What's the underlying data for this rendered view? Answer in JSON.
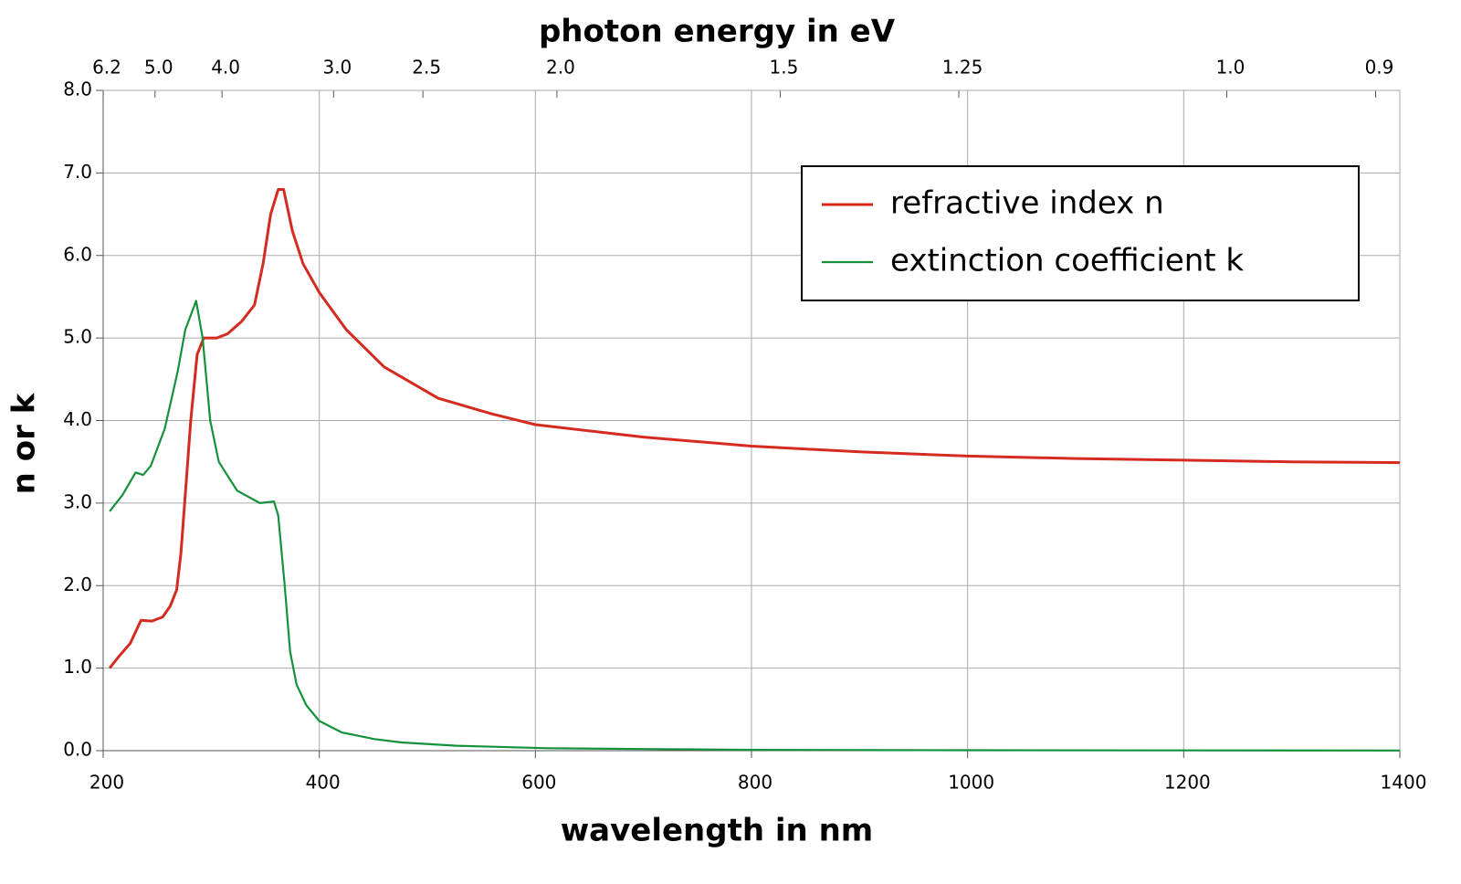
{
  "chart_data": {
    "type": "line",
    "xlabel": "wavelength in nm",
    "ylabel": "n or k",
    "x2label": "photon energy in eV",
    "xlim": [
      200,
      1400
    ],
    "xticks": [
      200,
      400,
      600,
      800,
      1000,
      1200,
      1400
    ],
    "ylim": [
      0,
      8
    ],
    "yticks": [
      {
        "value": 0,
        "label": "0.0"
      },
      {
        "value": 1,
        "label": "1.0"
      },
      {
        "value": 2,
        "label": "2.0"
      },
      {
        "value": 3,
        "label": "3.0"
      },
      {
        "value": 4,
        "label": "4.0"
      },
      {
        "value": 5,
        "label": "5.0"
      },
      {
        "value": 6,
        "label": "6.0"
      },
      {
        "value": 7,
        "label": "7.0"
      },
      {
        "value": 8,
        "label": "8.0"
      }
    ],
    "x2ticks": [
      6.2,
      {
        "value": 5,
        "label": "5.0"
      },
      {
        "value": 4,
        "label": "4.0"
      },
      {
        "value": 3,
        "label": "3.0"
      },
      2.5,
      {
        "value": 2,
        "label": "2.0"
      },
      1.5,
      1.25,
      {
        "value": 1,
        "label": "1.0"
      },
      0.9
    ],
    "grid": true,
    "legend": "upper right",
    "series": [
      {
        "name": "refractive index n",
        "color": "#d42a20",
        "x": [
          206,
          215,
          225,
          235,
          245,
          255,
          262,
          268,
          272,
          276,
          281,
          287,
          293,
          305,
          315,
          328,
          340,
          348,
          355,
          362,
          367,
          375,
          385,
          400,
          425,
          460,
          510,
          560,
          600,
          700,
          800,
          900,
          1000,
          1100,
          1200,
          1300,
          1400
        ],
        "values": [
          1.0,
          1.15,
          1.3,
          1.58,
          1.57,
          1.62,
          1.75,
          1.95,
          2.4,
          3.1,
          4.0,
          4.8,
          5.0,
          5.0,
          5.05,
          5.2,
          5.4,
          5.9,
          6.5,
          6.8,
          6.8,
          6.3,
          5.9,
          5.55,
          5.1,
          4.65,
          4.27,
          4.08,
          3.95,
          3.8,
          3.69,
          3.62,
          3.57,
          3.54,
          3.52,
          3.5,
          3.49
        ]
      },
      {
        "name": "extinction coefficient k",
        "color": "#14913c",
        "x": [
          206,
          218,
          230,
          237,
          244,
          257,
          269,
          276,
          286,
          292,
          299,
          307,
          324,
          345,
          358,
          362,
          368,
          373,
          379,
          388,
          400,
          421,
          451,
          476,
          527,
          611,
          700,
          800,
          1000,
          1200,
          1400
        ],
        "values": [
          2.9,
          3.1,
          3.37,
          3.34,
          3.45,
          3.9,
          4.6,
          5.1,
          5.45,
          5.0,
          4.0,
          3.5,
          3.15,
          3.0,
          3.02,
          2.85,
          2.0,
          1.2,
          0.8,
          0.55,
          0.36,
          0.22,
          0.14,
          0.1,
          0.06,
          0.03,
          0.02,
          0.01,
          0.005,
          0.003,
          0.002
        ]
      }
    ]
  }
}
